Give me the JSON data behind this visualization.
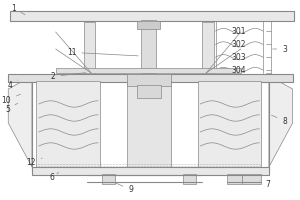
{
  "bg_color": "#ffffff",
  "line_color": "#888888",
  "dark_line": "#555555",
  "label_fontsize": 5.5,
  "lw_main": 0.8,
  "lw_thin": 0.5
}
